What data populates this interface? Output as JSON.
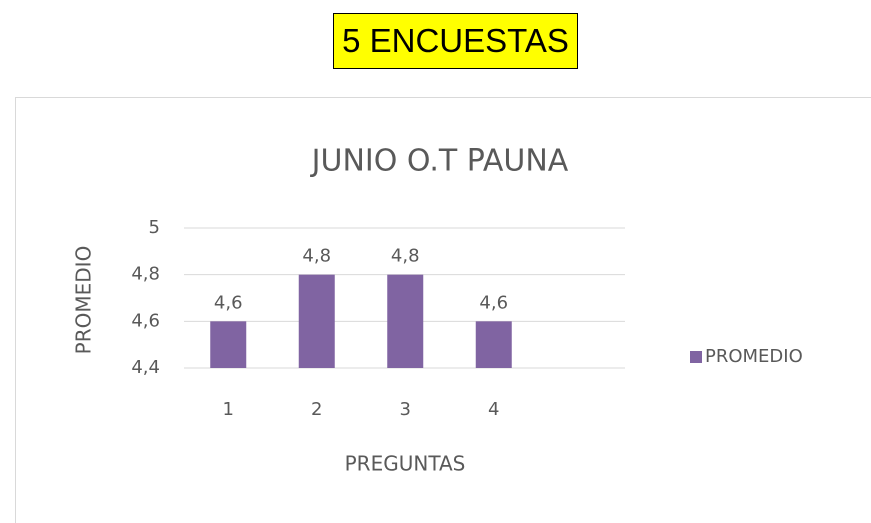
{
  "header": {
    "title": "5 ENCUESTAS"
  },
  "chart_data": {
    "type": "bar",
    "title": "JUNIO O.T PAUNA",
    "x_label": "PREGUNTAS",
    "y_label": "PROMEDIO",
    "categories": [
      "1",
      "2",
      "3",
      "4"
    ],
    "series": [
      {
        "name": "PROMEDIO",
        "color": "#8064a2",
        "values": [
          4.6,
          4.8,
          4.8,
          4.6
        ],
        "value_labels": [
          "4,6",
          "4,8",
          "4,8",
          "4,6"
        ]
      }
    ],
    "ylim": [
      4.4,
      5
    ],
    "yticks": [
      {
        "value": 4.4,
        "label": "4,4"
      },
      {
        "value": 4.6,
        "label": "4,6"
      },
      {
        "value": 4.8,
        "label": "4,8"
      },
      5
    ],
    "grid": true,
    "legend": "right"
  }
}
